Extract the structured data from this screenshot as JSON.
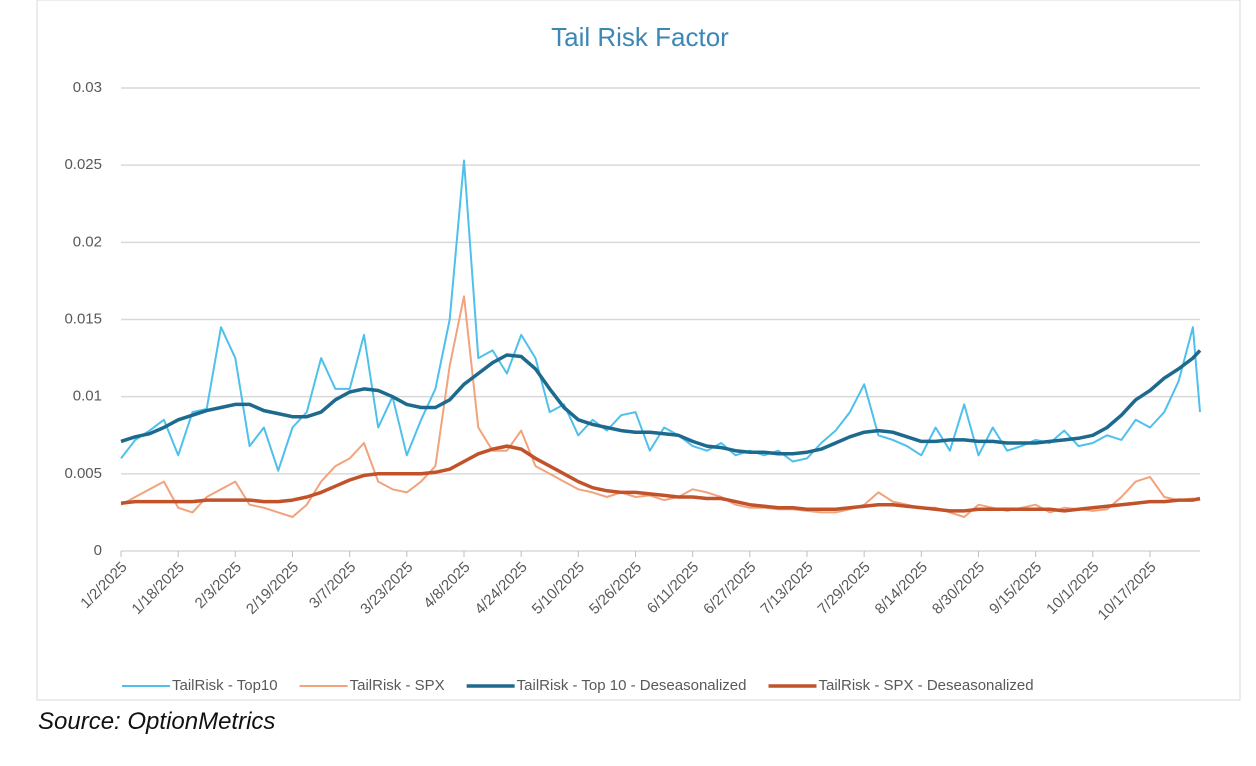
{
  "chart_data": {
    "type": "line",
    "title": "Tail Risk Factor",
    "x": [
      "1/2/2025",
      "1/6/2025",
      "1/10/2025",
      "1/14/2025",
      "1/18/2025",
      "1/22/2025",
      "1/26/2025",
      "1/30/2025",
      "2/3/2025",
      "2/7/2025",
      "2/11/2025",
      "2/15/2025",
      "2/19/2025",
      "2/23/2025",
      "2/27/2025",
      "3/3/2025",
      "3/7/2025",
      "3/11/2025",
      "3/15/2025",
      "3/19/2025",
      "3/23/2025",
      "3/27/2025",
      "3/31/2025",
      "4/4/2025",
      "4/8/2025",
      "4/12/2025",
      "4/16/2025",
      "4/20/2025",
      "4/24/2025",
      "4/28/2025",
      "5/2/2025",
      "5/6/2025",
      "5/10/2025",
      "5/14/2025",
      "5/18/2025",
      "5/22/2025",
      "5/26/2025",
      "5/30/2025",
      "6/3/2025",
      "6/7/2025",
      "6/11/2025",
      "6/15/2025",
      "6/19/2025",
      "6/23/2025",
      "6/27/2025",
      "7/1/2025",
      "7/5/2025",
      "7/9/2025",
      "7/13/2025",
      "7/17/2025",
      "7/21/2025",
      "7/25/2025",
      "7/29/2025",
      "8/2/2025",
      "8/6/2025",
      "8/10/2025",
      "8/14/2025",
      "8/18/2025",
      "8/22/2025",
      "8/26/2025",
      "8/30/2025",
      "9/3/2025",
      "9/7/2025",
      "9/11/2025",
      "9/15/2025",
      "9/19/2025",
      "9/23/2025",
      "9/27/2025",
      "10/1/2025",
      "10/5/2025",
      "10/9/2025",
      "10/13/2025",
      "10/17/2025",
      "10/21/2025",
      "10/25/2025",
      "10/29/2025",
      "10/31/2025"
    ],
    "xlim": [
      "1/2/2025",
      "10/31/2025"
    ],
    "xticks": [
      "1/2/2025",
      "1/18/2025",
      "2/3/2025",
      "2/19/2025",
      "3/7/2025",
      "3/23/2025",
      "4/8/2025",
      "4/24/2025",
      "5/10/2025",
      "5/26/2025",
      "6/11/2025",
      "6/27/2025",
      "7/13/2025",
      "7/29/2025",
      "8/14/2025",
      "8/30/2025",
      "9/15/2025",
      "10/1/2025",
      "10/17/2025"
    ],
    "ylim": [
      0,
      0.03
    ],
    "yticks": [
      0,
      0.005,
      0.01,
      0.015,
      0.02,
      0.025,
      0.03
    ],
    "grid": true,
    "series": [
      {
        "name": "TailRisk - Top10",
        "color": "#4fc0ec",
        "values": [
          0.006,
          0.0072,
          0.0078,
          0.0085,
          0.0062,
          0.009,
          0.0092,
          0.0145,
          0.0125,
          0.0068,
          0.008,
          0.0052,
          0.008,
          0.009,
          0.0125,
          0.0105,
          0.0105,
          0.014,
          0.008,
          0.01,
          0.0062,
          0.0085,
          0.0105,
          0.015,
          0.0253,
          0.0125,
          0.013,
          0.0115,
          0.014,
          0.0125,
          0.009,
          0.0095,
          0.0075,
          0.0085,
          0.0078,
          0.0088,
          0.009,
          0.0065,
          0.008,
          0.0075,
          0.0068,
          0.0065,
          0.007,
          0.0062,
          0.0065,
          0.0062,
          0.0065,
          0.0058,
          0.006,
          0.007,
          0.0078,
          0.009,
          0.0108,
          0.0075,
          0.0072,
          0.0068,
          0.0062,
          0.008,
          0.0065,
          0.0095,
          0.0062,
          0.008,
          0.0065,
          0.0068,
          0.0072,
          0.007,
          0.0078,
          0.0068,
          0.007,
          0.0075,
          0.0072,
          0.0085,
          0.008,
          0.009,
          0.011,
          0.0145,
          0.009
        ]
      },
      {
        "name": "TailRisk - SPX",
        "color": "#f2a27c",
        "values": [
          0.003,
          0.0035,
          0.004,
          0.0045,
          0.0028,
          0.0025,
          0.0035,
          0.004,
          0.0045,
          0.003,
          0.0028,
          0.0025,
          0.0022,
          0.003,
          0.0045,
          0.0055,
          0.006,
          0.007,
          0.0045,
          0.004,
          0.0038,
          0.0045,
          0.0055,
          0.012,
          0.0165,
          0.008,
          0.0065,
          0.0065,
          0.0078,
          0.0055,
          0.005,
          0.0045,
          0.004,
          0.0038,
          0.0035,
          0.0038,
          0.0035,
          0.0036,
          0.0033,
          0.0035,
          0.004,
          0.0038,
          0.0035,
          0.003,
          0.0028,
          0.0028,
          0.0027,
          0.0027,
          0.0026,
          0.0025,
          0.0025,
          0.0027,
          0.003,
          0.0038,
          0.0032,
          0.003,
          0.0028,
          0.0028,
          0.0025,
          0.0022,
          0.003,
          0.0028,
          0.0026,
          0.0028,
          0.003,
          0.0025,
          0.0028,
          0.0027,
          0.0026,
          0.0027,
          0.0035,
          0.0045,
          0.0048,
          0.0035,
          0.0033,
          0.0034,
          0.0033
        ]
      },
      {
        "name": "TailRisk - Top 10 - Deseasonalized",
        "color": "#1d6a8e",
        "values": [
          0.0071,
          0.0074,
          0.0076,
          0.008,
          0.0085,
          0.0088,
          0.0091,
          0.0093,
          0.0095,
          0.0095,
          0.0091,
          0.0089,
          0.0087,
          0.0087,
          0.009,
          0.0098,
          0.0103,
          0.0105,
          0.0104,
          0.01,
          0.0095,
          0.0093,
          0.0093,
          0.0098,
          0.0108,
          0.0115,
          0.0122,
          0.0127,
          0.0126,
          0.0118,
          0.0105,
          0.0093,
          0.0085,
          0.0082,
          0.008,
          0.0078,
          0.0077,
          0.0077,
          0.0076,
          0.0075,
          0.0071,
          0.0068,
          0.0067,
          0.0065,
          0.0064,
          0.0064,
          0.0063,
          0.0063,
          0.0064,
          0.0066,
          0.007,
          0.0074,
          0.0077,
          0.0078,
          0.0077,
          0.0074,
          0.0071,
          0.0071,
          0.0072,
          0.0072,
          0.0071,
          0.0071,
          0.007,
          0.007,
          0.007,
          0.0071,
          0.0072,
          0.0073,
          0.0075,
          0.008,
          0.0088,
          0.0098,
          0.0104,
          0.0112,
          0.0118,
          0.0125,
          0.013
        ]
      },
      {
        "name": "TailRisk - SPX - Deseasonalized",
        "color": "#c1532b",
        "values": [
          0.0031,
          0.0032,
          0.0032,
          0.0032,
          0.0032,
          0.0032,
          0.0033,
          0.0033,
          0.0033,
          0.0033,
          0.0032,
          0.0032,
          0.0033,
          0.0035,
          0.0038,
          0.0042,
          0.0046,
          0.0049,
          0.005,
          0.005,
          0.005,
          0.005,
          0.0051,
          0.0053,
          0.0058,
          0.0063,
          0.0066,
          0.0068,
          0.0066,
          0.006,
          0.0055,
          0.005,
          0.0045,
          0.0041,
          0.0039,
          0.0038,
          0.0038,
          0.0037,
          0.0036,
          0.0035,
          0.0035,
          0.0034,
          0.0034,
          0.0032,
          0.003,
          0.0029,
          0.0028,
          0.0028,
          0.0027,
          0.0027,
          0.0027,
          0.0028,
          0.0029,
          0.003,
          0.003,
          0.0029,
          0.0028,
          0.0027,
          0.0026,
          0.0026,
          0.0027,
          0.0027,
          0.0027,
          0.0027,
          0.0027,
          0.0027,
          0.0026,
          0.0027,
          0.0028,
          0.0029,
          0.003,
          0.0031,
          0.0032,
          0.0032,
          0.0033,
          0.0033,
          0.0034
        ]
      }
    ]
  },
  "source": "Source: OptionMetrics"
}
